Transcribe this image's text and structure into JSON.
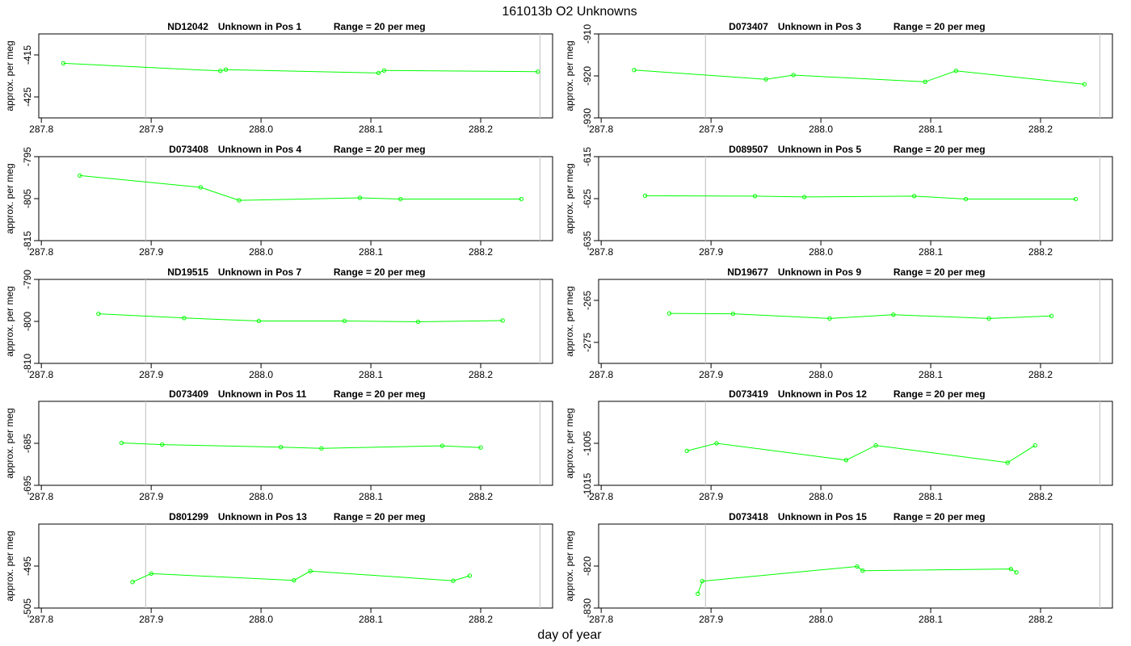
{
  "figure": {
    "title": "161013b  O2 Unknowns",
    "xlabel": "day of year"
  },
  "colors": {
    "series": "#00ff00",
    "axis": "#000000",
    "vline": "#c8c8c8"
  },
  "chart_data": [
    {
      "type": "line",
      "sample": "D12042",
      "sample_label": "ND12042",
      "position_label": "Unknown in Pos 1",
      "range_label": "Range = 20 per meg",
      "ylabel": "approx. per meg",
      "xlim": [
        287.8,
        288.25
      ],
      "ylim": [
        -410,
        -430
      ],
      "xticks": [
        "287.8",
        "287.9",
        "288.0",
        "288.1",
        "288.2"
      ],
      "yticks": [
        "-415",
        "-425"
      ],
      "vlines": [
        287.895,
        288.254
      ],
      "x": [
        287.82,
        287.963,
        287.968,
        288.107,
        288.112,
        288.252
      ],
      "y": [
        -417,
        -418.8,
        -418.5,
        -419.3,
        -418.7,
        -419.0
      ]
    },
    {
      "type": "line",
      "sample_label": "D073407",
      "position_label": "Unknown in Pos 3",
      "range_label": "Range = 20 per meg",
      "ylabel": "approx. per meg",
      "xlim": [
        287.8,
        288.25
      ],
      "ylim": [
        -910,
        -930
      ],
      "xticks": [
        "287.8",
        "287.9",
        "288.0",
        "288.1",
        "288.2"
      ],
      "yticks": [
        "-910",
        "-920",
        "-930"
      ],
      "vlines": [
        287.895,
        288.254
      ],
      "x": [
        287.83,
        287.95,
        287.975,
        288.095,
        288.123,
        288.24
      ],
      "y": [
        -918.6,
        -920.8,
        -919.8,
        -921.4,
        -918.8,
        -922.0
      ]
    },
    {
      "type": "line",
      "sample_label": "D073408",
      "position_label": "Unknown in Pos 4",
      "range_label": "Range = 20 per meg",
      "ylabel": "approx. per meg",
      "xlim": [
        287.8,
        288.25
      ],
      "ylim": [
        -795,
        -815
      ],
      "xticks": [
        "287.8",
        "287.9",
        "288.0",
        "288.1",
        "288.2"
      ],
      "yticks": [
        "-795",
        "-805",
        "-815"
      ],
      "vlines": [
        287.895,
        288.254
      ],
      "x": [
        287.835,
        287.945,
        287.98,
        288.09,
        288.127,
        288.237
      ],
      "y": [
        -799.5,
        -802.3,
        -805.4,
        -804.8,
        -805.1,
        -805.1
      ]
    },
    {
      "type": "line",
      "sample_label": "D089507",
      "position_label": "Unknown in Pos 5",
      "range_label": "Range = 20 per meg",
      "ylabel": "approx. per meg",
      "xlim": [
        287.8,
        288.25
      ],
      "ylim": [
        -615,
        -635
      ],
      "xticks": [
        "287.8",
        "287.9",
        "288.0",
        "288.1",
        "288.2"
      ],
      "yticks": [
        "-615",
        "-625",
        "-635"
      ],
      "vlines": [
        287.895,
        288.254
      ],
      "x": [
        287.84,
        287.94,
        287.985,
        288.085,
        288.132,
        288.232
      ],
      "y": [
        -624.3,
        -624.4,
        -624.6,
        -624.4,
        -625.1,
        -625.1
      ]
    },
    {
      "type": "line",
      "sample_label": "ND19515",
      "position_label": "Unknown in Pos 7",
      "range_label": "Range = 20 per meg",
      "ylabel": "approx. per meg",
      "xlim": [
        287.8,
        288.25
      ],
      "ylim": [
        -790,
        -810
      ],
      "xticks": [
        "287.8",
        "287.9",
        "288.0",
        "288.1",
        "288.2"
      ],
      "yticks": [
        "-790",
        "-800",
        "-810"
      ],
      "vlines": [
        287.895,
        288.254
      ],
      "x": [
        287.852,
        287.93,
        287.998,
        288.076,
        288.143,
        288.22
      ],
      "y": [
        -798.2,
        -799.2,
        -799.9,
        -799.9,
        -800.1,
        -799.8
      ]
    },
    {
      "type": "line",
      "sample_label": "ND19677",
      "position_label": "Unknown in Pos 9",
      "range_label": "Range = 20 per meg",
      "ylabel": "approx. per meg",
      "xlim": [
        287.8,
        288.25
      ],
      "ylim": [
        -260,
        -280
      ],
      "xticks": [
        "287.8",
        "287.9",
        "288.0",
        "288.1",
        "288.2"
      ],
      "yticks": [
        "-265",
        "-275"
      ],
      "vlines": [
        287.895,
        288.254
      ],
      "x": [
        287.862,
        287.92,
        288.008,
        288.066,
        288.153,
        288.21
      ],
      "y": [
        -268.1,
        -268.2,
        -269.3,
        -268.4,
        -269.3,
        -268.7
      ]
    },
    {
      "type": "line",
      "sample_label": "D073409",
      "position_label": "Unknown in Pos 11",
      "range_label": "Range = 20 per meg",
      "ylabel": "approx. per meg",
      "xlim": [
        287.8,
        288.25
      ],
      "ylim": [
        -675,
        -695
      ],
      "xticks": [
        "287.8",
        "287.9",
        "288.0",
        "288.1",
        "288.2"
      ],
      "yticks": [
        "-685",
        "-695"
      ],
      "vlines": [
        287.895,
        288.254
      ],
      "x": [
        287.873,
        287.91,
        288.018,
        288.055,
        288.165,
        288.2
      ],
      "y": [
        -684.9,
        -685.3,
        -685.9,
        -686.2,
        -685.6,
        -686.0
      ]
    },
    {
      "type": "line",
      "sample_label": "D073419",
      "position_label": "Unknown in Pos 12",
      "range_label": "Range = 20 per meg",
      "ylabel": "approx. per meg",
      "xlim": [
        287.8,
        288.25
      ],
      "ylim": [
        -995,
        -1015
      ],
      "xticks": [
        "287.8",
        "287.9",
        "288.0",
        "288.1",
        "288.2"
      ],
      "yticks": [
        "-1005",
        "-1015"
      ],
      "vlines": [
        287.895,
        288.254
      ],
      "x": [
        287.878,
        287.905,
        288.023,
        288.05,
        288.17,
        288.195
      ],
      "y": [
        -1006.8,
        -1005.0,
        -1009.0,
        -1005.5,
        -1009.6,
        -1005.5
      ]
    },
    {
      "type": "line",
      "sample_label": "D801299",
      "position_label": "Unknown in Pos 13",
      "range_label": "Range = 20 per meg",
      "ylabel": "approx. per meg",
      "xlim": [
        287.8,
        288.25
      ],
      "ylim": [
        -485,
        -505
      ],
      "xticks": [
        "287.8",
        "287.9",
        "288.0",
        "288.1",
        "288.2"
      ],
      "yticks": [
        "-495",
        "-505"
      ],
      "vlines": [
        287.895,
        288.254
      ],
      "x": [
        287.883,
        287.9,
        288.03,
        288.045,
        288.175,
        288.19
      ],
      "y": [
        -498.8,
        -496.8,
        -498.4,
        -496.2,
        -498.5,
        -497.3
      ]
    },
    {
      "type": "line",
      "sample_label": "D073418",
      "position_label": "Unknown in Pos 15",
      "range_label": "Range = 20 per meg",
      "ylabel": "approx. per meg",
      "xlim": [
        287.8,
        288.25
      ],
      "ylim": [
        -810,
        -830
      ],
      "xticks": [
        "287.8",
        "287.9",
        "288.0",
        "288.1",
        "288.2"
      ],
      "yticks": [
        "-820",
        "-830"
      ],
      "vlines": [
        287.895,
        288.254
      ],
      "x": [
        287.888,
        287.892,
        288.033,
        288.038,
        288.173,
        288.178
      ],
      "y": [
        -826.6,
        -823.6,
        -820.1,
        -821.1,
        -820.7,
        -821.5
      ]
    }
  ]
}
